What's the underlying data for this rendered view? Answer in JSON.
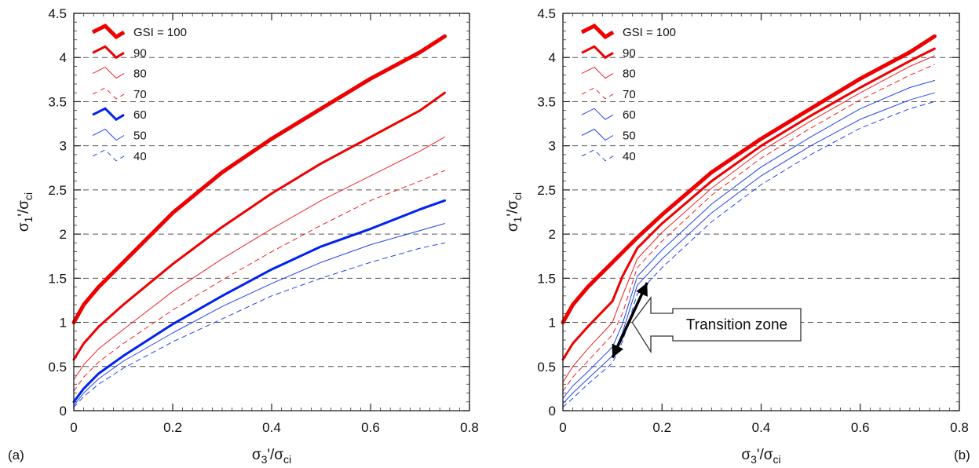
{
  "chart_data": [
    {
      "type": "line",
      "panel_label": "(a)",
      "xlabel_main": "σ",
      "xlabel_sub": "3",
      "xlabel_mid": "'/σ",
      "xlabel_sub2": "ci",
      "ylabel_main": "σ",
      "ylabel_sub": "1",
      "ylabel_mid": "'/σ",
      "ylabel_sub2": "ci",
      "xlim": [
        0,
        0.8
      ],
      "ylim": [
        0,
        4.5
      ],
      "xticks": [
        "0",
        "0.2",
        "0.4",
        "0.6",
        "0.8"
      ],
      "yticks": [
        "0",
        "0.5",
        "1",
        "1.5",
        "2",
        "2.5",
        "3",
        "3.5",
        "4",
        "4.5"
      ],
      "grid": "horizontal dashed",
      "legend_placement": "top-left",
      "series": [
        {
          "name": "GSI = 100",
          "color": "#ee0000",
          "width": 5,
          "dash": "",
          "x": [
            0,
            0.02,
            0.05,
            0.1,
            0.2,
            0.3,
            0.4,
            0.5,
            0.6,
            0.7,
            0.75
          ],
          "y": [
            1.0,
            1.2,
            1.4,
            1.68,
            2.24,
            2.7,
            3.08,
            3.42,
            3.76,
            4.06,
            4.24
          ]
        },
        {
          "name": "90",
          "color": "#ee0000",
          "width": 3,
          "dash": "",
          "x": [
            0,
            0.02,
            0.05,
            0.1,
            0.2,
            0.3,
            0.4,
            0.5,
            0.6,
            0.7,
            0.75
          ],
          "y": [
            0.58,
            0.76,
            0.95,
            1.2,
            1.66,
            2.08,
            2.46,
            2.8,
            3.1,
            3.4,
            3.6
          ]
        },
        {
          "name": "80",
          "color": "#ee2222",
          "width": 1,
          "dash": "",
          "x": [
            0,
            0.02,
            0.05,
            0.1,
            0.2,
            0.3,
            0.4,
            0.5,
            0.6,
            0.7,
            0.75
          ],
          "y": [
            0.35,
            0.52,
            0.7,
            0.92,
            1.35,
            1.72,
            2.06,
            2.38,
            2.66,
            2.94,
            3.1
          ]
        },
        {
          "name": "70",
          "color": "#ee2222",
          "width": 1,
          "dash": "6,5",
          "x": [
            0,
            0.02,
            0.05,
            0.1,
            0.2,
            0.3,
            0.4,
            0.5,
            0.6,
            0.7,
            0.75
          ],
          "y": [
            0.22,
            0.38,
            0.55,
            0.76,
            1.14,
            1.48,
            1.8,
            2.1,
            2.38,
            2.6,
            2.72
          ]
        },
        {
          "name": "60",
          "color": "#0022ee",
          "width": 3,
          "dash": "",
          "x": [
            0,
            0.02,
            0.05,
            0.1,
            0.2,
            0.3,
            0.4,
            0.5,
            0.6,
            0.7,
            0.75
          ],
          "y": [
            0.1,
            0.25,
            0.42,
            0.62,
            0.98,
            1.3,
            1.6,
            1.86,
            2.06,
            2.28,
            2.38
          ]
        },
        {
          "name": "50",
          "color": "#2244ee",
          "width": 1,
          "dash": "",
          "x": [
            0,
            0.02,
            0.05,
            0.1,
            0.2,
            0.3,
            0.4,
            0.5,
            0.6,
            0.7,
            0.75
          ],
          "y": [
            0.06,
            0.2,
            0.36,
            0.56,
            0.88,
            1.18,
            1.44,
            1.68,
            1.88,
            2.04,
            2.12
          ]
        },
        {
          "name": "40",
          "color": "#2244ee",
          "width": 1,
          "dash": "6,5",
          "x": [
            0,
            0.02,
            0.05,
            0.1,
            0.2,
            0.3,
            0.4,
            0.5,
            0.6,
            0.7,
            0.75
          ],
          "y": [
            0.04,
            0.16,
            0.3,
            0.48,
            0.78,
            1.04,
            1.3,
            1.5,
            1.68,
            1.84,
            1.9
          ]
        }
      ]
    },
    {
      "type": "line",
      "panel_label": "(b)",
      "annotation": "Transition zone",
      "xlabel_main": "σ",
      "xlabel_sub": "3",
      "xlabel_mid": "'/σ",
      "xlabel_sub2": "ci",
      "ylabel_main": "σ",
      "ylabel_sub": "1",
      "ylabel_mid": "'/σ",
      "ylabel_sub2": "ci",
      "xlim": [
        0,
        0.8
      ],
      "ylim": [
        0,
        4.5
      ],
      "xticks": [
        "0",
        "0.2",
        "0.4",
        "0.6",
        "0.8"
      ],
      "yticks": [
        "0",
        "0.5",
        "1",
        "1.5",
        "2",
        "2.5",
        "3",
        "3.5",
        "4",
        "4.5"
      ],
      "grid": "horizontal dashed",
      "legend_placement": "top-left",
      "arrow_from": [
        0.1,
        0.6
      ],
      "arrow_to": [
        0.17,
        1.45
      ],
      "callout_tip": [
        0.14,
        1.0
      ],
      "series": [
        {
          "name": "GSI = 100",
          "color": "#ee0000",
          "width": 5,
          "dash": "",
          "x": [
            0,
            0.02,
            0.05,
            0.1,
            0.15,
            0.2,
            0.3,
            0.4,
            0.5,
            0.6,
            0.7,
            0.75
          ],
          "y": [
            1.0,
            1.2,
            1.4,
            1.68,
            1.96,
            2.22,
            2.7,
            3.08,
            3.42,
            3.76,
            4.06,
            4.24
          ]
        },
        {
          "name": "90",
          "color": "#ee0000",
          "width": 3,
          "dash": "",
          "x": [
            0,
            0.02,
            0.05,
            0.1,
            0.12,
            0.15,
            0.2,
            0.3,
            0.4,
            0.5,
            0.6,
            0.7,
            0.75
          ],
          "y": [
            0.58,
            0.76,
            0.95,
            1.24,
            1.52,
            1.84,
            2.12,
            2.6,
            3.0,
            3.34,
            3.66,
            3.96,
            4.1
          ]
        },
        {
          "name": "80",
          "color": "#ee2222",
          "width": 1,
          "dash": "",
          "x": [
            0,
            0.02,
            0.05,
            0.1,
            0.12,
            0.15,
            0.2,
            0.3,
            0.4,
            0.5,
            0.6,
            0.7,
            0.75
          ],
          "y": [
            0.32,
            0.5,
            0.7,
            1.0,
            1.3,
            1.72,
            2.02,
            2.52,
            2.94,
            3.28,
            3.6,
            3.9,
            4.02
          ]
        },
        {
          "name": "70",
          "color": "#ee2222",
          "width": 1,
          "dash": "6,5",
          "x": [
            0,
            0.02,
            0.05,
            0.1,
            0.12,
            0.15,
            0.2,
            0.3,
            0.4,
            0.5,
            0.6,
            0.7,
            0.75
          ],
          "y": [
            0.22,
            0.38,
            0.56,
            0.86,
            1.1,
            1.62,
            1.92,
            2.44,
            2.86,
            3.2,
            3.52,
            3.8,
            3.92
          ]
        },
        {
          "name": "60",
          "color": "#2244ee",
          "width": 1,
          "dash": "",
          "x": [
            0,
            0.02,
            0.05,
            0.1,
            0.12,
            0.15,
            0.2,
            0.3,
            0.4,
            0.5,
            0.6,
            0.7,
            0.75
          ],
          "y": [
            0.14,
            0.28,
            0.44,
            0.72,
            0.98,
            1.52,
            1.82,
            2.34,
            2.76,
            3.1,
            3.42,
            3.66,
            3.74
          ]
        },
        {
          "name": "50",
          "color": "#2244ee",
          "width": 1,
          "dash": "",
          "x": [
            0,
            0.02,
            0.05,
            0.1,
            0.12,
            0.15,
            0.2,
            0.3,
            0.4,
            0.5,
            0.6,
            0.7,
            0.75
          ],
          "y": [
            0.08,
            0.2,
            0.36,
            0.62,
            0.88,
            1.42,
            1.72,
            2.24,
            2.66,
            3.0,
            3.3,
            3.52,
            3.6
          ]
        },
        {
          "name": "40",
          "color": "#2244ee",
          "width": 1,
          "dash": "6,5",
          "x": [
            0,
            0.02,
            0.05,
            0.1,
            0.12,
            0.15,
            0.2,
            0.3,
            0.4,
            0.5,
            0.6,
            0.7,
            0.75
          ],
          "y": [
            0.04,
            0.14,
            0.3,
            0.54,
            0.78,
            1.32,
            1.62,
            2.14,
            2.56,
            2.9,
            3.2,
            3.42,
            3.5
          ]
        }
      ]
    }
  ]
}
